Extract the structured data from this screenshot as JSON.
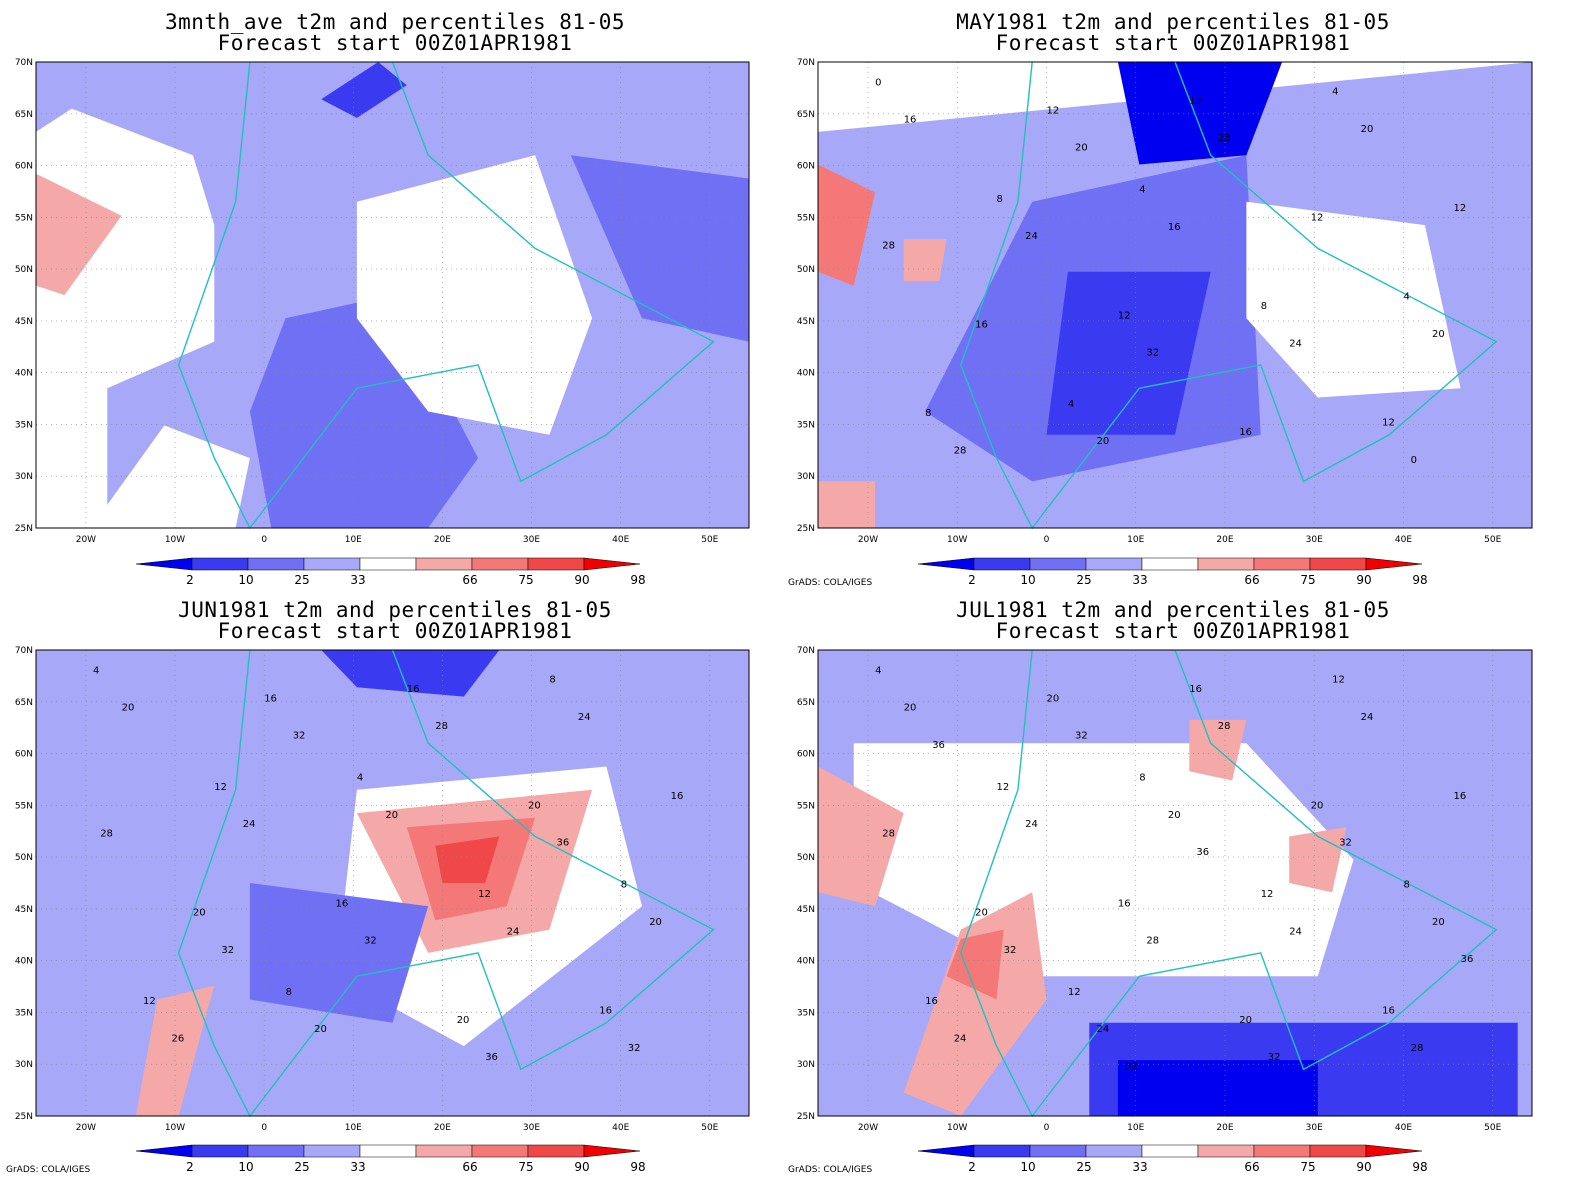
{
  "credit": "GrADS: COLA/IGES",
  "colors": {
    "blue_2": "#0000f0",
    "blue_10": "#3a3af0",
    "blue_25": "#7070f4",
    "blue_33": "#a8a8f8",
    "red_66": "#f4a8a8",
    "red_75": "#f47878",
    "red_90": "#f04848",
    "red_98": "#f00000",
    "coast": "#20c0c0",
    "contour": "#000000"
  },
  "legend": {
    "labels": [
      "2",
      "10",
      "25",
      "33",
      "66",
      "75",
      "90",
      "98"
    ]
  },
  "axes": {
    "lat_labels": [
      "70N",
      "65N",
      "60N",
      "55N",
      "50N",
      "45N",
      "40N",
      "35N",
      "30N",
      "25N"
    ],
    "lon_labels": [
      "20W",
      "10W",
      "0",
      "10E",
      "20E",
      "30E",
      "40E",
      "50E"
    ]
  },
  "panels": [
    {
      "title1": "3mnth_ave t2m and percentiles 81-05",
      "title2": "Forecast start 00Z01APR1981",
      "contour_labels": []
    },
    {
      "title1": "MAY1981 t2m and percentiles 81-05",
      "title2": "Forecast start 00Z01APR1981",
      "contour_labels": [
        "0",
        "4",
        "4",
        "4",
        "4",
        "8",
        "8",
        "8",
        "12",
        "12",
        "12",
        "12",
        "12",
        "12",
        "16",
        "16",
        "16",
        "16",
        "20",
        "20",
        "20",
        "24",
        "24",
        "28",
        "28",
        "28",
        "32",
        "0",
        "20"
      ]
    },
    {
      "title1": "JUN1981 t2m and percentiles 81-05",
      "title2": "Forecast start 00Z01APR1981",
      "contour_labels": [
        "4",
        "4",
        "8",
        "8",
        "8",
        "12",
        "12",
        "12",
        "16",
        "16",
        "16",
        "16",
        "16",
        "20",
        "20",
        "20",
        "20",
        "20",
        "20",
        "20",
        "24",
        "24",
        "24",
        "26",
        "28",
        "28",
        "32",
        "32",
        "32",
        "36",
        "32",
        "36"
      ]
    },
    {
      "title1": "JUL1981 t2m and percentiles 81-05",
      "title2": "Forecast start 00Z01APR1981",
      "contour_labels": [
        "4",
        "8",
        "8",
        "12",
        "12",
        "12",
        "12",
        "16",
        "16",
        "16",
        "16",
        "16",
        "20",
        "20",
        "20",
        "20",
        "20",
        "20",
        "20",
        "24",
        "24",
        "24",
        "24",
        "24",
        "28",
        "28",
        "28",
        "28",
        "32",
        "32",
        "32",
        "32",
        "36",
        "36",
        "36",
        "32"
      ]
    }
  ]
}
